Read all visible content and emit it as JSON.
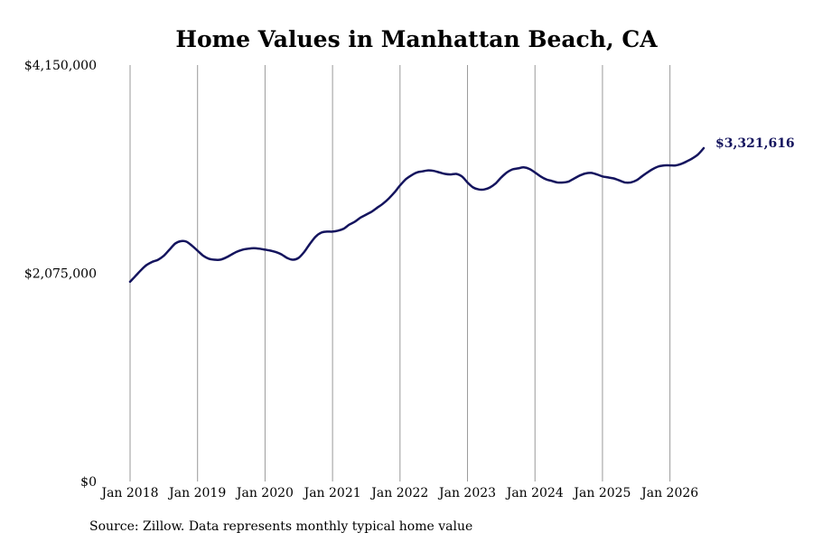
{
  "chart_data": {
    "type": "line",
    "title": "Home Values in Manhattan Beach, CA",
    "source": "Source: Zillow. Data represents monthly typical home value",
    "end_label": "$3,321,616",
    "line_color": "#14145e",
    "grid": "vertical",
    "ylim": [
      0,
      4150000
    ],
    "yticks": [
      {
        "value": 0,
        "label": "$0"
      },
      {
        "value": 2075000,
        "label": "$2,075,000"
      },
      {
        "value": 4150000,
        "label": "$4,150,000"
      }
    ],
    "xlim": [
      "2018-01",
      "2026-07"
    ],
    "xticks": [
      {
        "value": "2018-01",
        "label": "Jan 2018"
      },
      {
        "value": "2019-01",
        "label": "Jan 2019"
      },
      {
        "value": "2020-01",
        "label": "Jan 2020"
      },
      {
        "value": "2021-01",
        "label": "Jan 2021"
      },
      {
        "value": "2022-01",
        "label": "Jan 2022"
      },
      {
        "value": "2023-01",
        "label": "Jan 2023"
      },
      {
        "value": "2024-01",
        "label": "Jan 2024"
      },
      {
        "value": "2025-01",
        "label": "Jan 2025"
      },
      {
        "value": "2026-01",
        "label": "Jan 2026"
      }
    ],
    "series": [
      {
        "x": [
          "2018-01",
          "2018-02",
          "2018-03",
          "2018-04",
          "2018-05",
          "2018-06",
          "2018-07",
          "2018-08",
          "2018-09",
          "2018-10",
          "2018-11",
          "2018-12",
          "2019-01",
          "2019-02",
          "2019-03",
          "2019-04",
          "2019-05",
          "2019-06",
          "2019-07",
          "2019-08",
          "2019-09",
          "2019-10",
          "2019-11",
          "2019-12",
          "2020-01",
          "2020-02",
          "2020-03",
          "2020-04",
          "2020-05",
          "2020-06",
          "2020-07",
          "2020-08",
          "2020-09",
          "2020-10",
          "2020-11",
          "2020-12",
          "2021-01",
          "2021-02",
          "2021-03",
          "2021-04",
          "2021-05",
          "2021-06",
          "2021-07",
          "2021-08",
          "2021-09",
          "2021-10",
          "2021-11",
          "2021-12",
          "2022-01",
          "2022-02",
          "2022-03",
          "2022-04",
          "2022-05",
          "2022-06",
          "2022-07",
          "2022-08",
          "2022-09",
          "2022-10",
          "2022-11",
          "2022-12",
          "2023-01",
          "2023-02",
          "2023-03",
          "2023-04",
          "2023-05",
          "2023-06",
          "2023-07",
          "2023-08",
          "2023-09",
          "2023-10",
          "2023-11",
          "2023-12",
          "2024-01",
          "2024-02",
          "2024-03",
          "2024-04",
          "2024-05",
          "2024-06",
          "2024-07",
          "2024-08",
          "2024-09",
          "2024-10",
          "2024-11",
          "2024-12",
          "2025-01",
          "2025-02",
          "2025-03",
          "2025-04",
          "2025-05",
          "2025-06",
          "2025-07",
          "2025-08",
          "2025-09",
          "2025-10",
          "2025-11",
          "2025-12",
          "2026-01",
          "2026-02",
          "2026-03",
          "2026-04",
          "2026-05",
          "2026-06",
          "2026-07"
        ],
        "values": [
          1990000,
          2050000,
          2110000,
          2160000,
          2190000,
          2210000,
          2250000,
          2310000,
          2370000,
          2395000,
          2390000,
          2350000,
          2300000,
          2250000,
          2220000,
          2210000,
          2210000,
          2230000,
          2260000,
          2290000,
          2310000,
          2320000,
          2325000,
          2320000,
          2310000,
          2300000,
          2285000,
          2260000,
          2225000,
          2210000,
          2230000,
          2290000,
          2370000,
          2440000,
          2480000,
          2490000,
          2490000,
          2500000,
          2520000,
          2560000,
          2590000,
          2630000,
          2660000,
          2690000,
          2730000,
          2770000,
          2820000,
          2880000,
          2950000,
          3010000,
          3050000,
          3080000,
          3090000,
          3100000,
          3095000,
          3080000,
          3065000,
          3060000,
          3065000,
          3040000,
          2980000,
          2930000,
          2910000,
          2910000,
          2930000,
          2970000,
          3030000,
          3080000,
          3110000,
          3120000,
          3130000,
          3115000,
          3080000,
          3040000,
          3010000,
          2995000,
          2980000,
          2980000,
          2990000,
          3020000,
          3050000,
          3070000,
          3075000,
          3060000,
          3040000,
          3030000,
          3020000,
          3000000,
          2980000,
          2980000,
          3000000,
          3040000,
          3080000,
          3115000,
          3140000,
          3150000,
          3150000,
          3150000,
          3165000,
          3190000,
          3220000,
          3260000,
          3321616
        ]
      }
    ]
  }
}
